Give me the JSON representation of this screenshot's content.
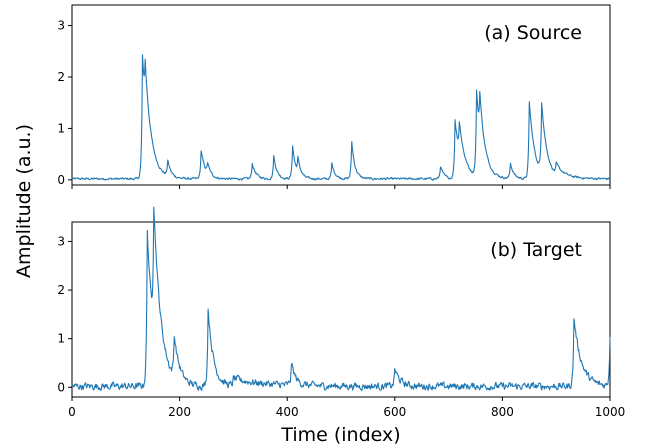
{
  "chart_data": {
    "type": "line",
    "shared_axes": {
      "xlabel": "Time (index)",
      "ylabel": "Amplitude (a.u.)",
      "xlim": [
        0,
        1000
      ],
      "xticks": [
        "0",
        "200",
        "400",
        "600",
        "800",
        "1000"
      ]
    },
    "panels": [
      {
        "title": "(a) Source",
        "ylim": [
          -0.1,
          3.4
        ],
        "yticks": [
          "0",
          "1",
          "2",
          "3"
        ],
        "series": [
          {
            "color": "#1f77b4",
            "baseline": 0.02,
            "noise": 0.018,
            "peaks": [
              {
                "x": 131,
                "h": 2.35,
                "w": 10
              },
              {
                "x": 136,
                "h": 0.9,
                "w": 14
              },
              {
                "x": 178,
                "h": 0.3,
                "w": 6
              },
              {
                "x": 240,
                "h": 0.55,
                "w": 8
              },
              {
                "x": 252,
                "h": 0.2,
                "w": 6
              },
              {
                "x": 335,
                "h": 0.3,
                "w": 7
              },
              {
                "x": 375,
                "h": 0.45,
                "w": 6
              },
              {
                "x": 410,
                "h": 0.65,
                "w": 6
              },
              {
                "x": 420,
                "h": 0.3,
                "w": 6
              },
              {
                "x": 483,
                "h": 0.3,
                "w": 6
              },
              {
                "x": 520,
                "h": 0.72,
                "w": 6
              },
              {
                "x": 685,
                "h": 0.25,
                "w": 6
              },
              {
                "x": 712,
                "h": 1.15,
                "w": 10
              },
              {
                "x": 720,
                "h": 0.6,
                "w": 12
              },
              {
                "x": 752,
                "h": 1.65,
                "w": 8
              },
              {
                "x": 758,
                "h": 0.9,
                "w": 12
              },
              {
                "x": 815,
                "h": 0.3,
                "w": 6
              },
              {
                "x": 850,
                "h": 1.5,
                "w": 10
              },
              {
                "x": 873,
                "h": 1.35,
                "w": 10
              },
              {
                "x": 900,
                "h": 0.2,
                "w": 20
              }
            ]
          }
        ]
      },
      {
        "title": "(b) Target",
        "ylim": [
          -0.2,
          3.4
        ],
        "yticks": [
          "0",
          "1",
          "2",
          "3"
        ],
        "series": [
          {
            "color": "#1f77b4",
            "baseline": 0.02,
            "noise": 0.06,
            "peaks": [
              {
                "x": 140,
                "h": 3.2,
                "w": 12
              },
              {
                "x": 152,
                "h": 2.6,
                "w": 14
              },
              {
                "x": 190,
                "h": 0.85,
                "w": 10
              },
              {
                "x": 253,
                "h": 1.6,
                "w": 10
              },
              {
                "x": 300,
                "h": 0.15,
                "w": 60
              },
              {
                "x": 408,
                "h": 0.45,
                "w": 8
              },
              {
                "x": 600,
                "h": 0.35,
                "w": 10
              },
              {
                "x": 933,
                "h": 1.4,
                "w": 14
              },
              {
                "x": 1000,
                "h": 1.05,
                "w": 8
              }
            ]
          }
        ]
      }
    ]
  }
}
